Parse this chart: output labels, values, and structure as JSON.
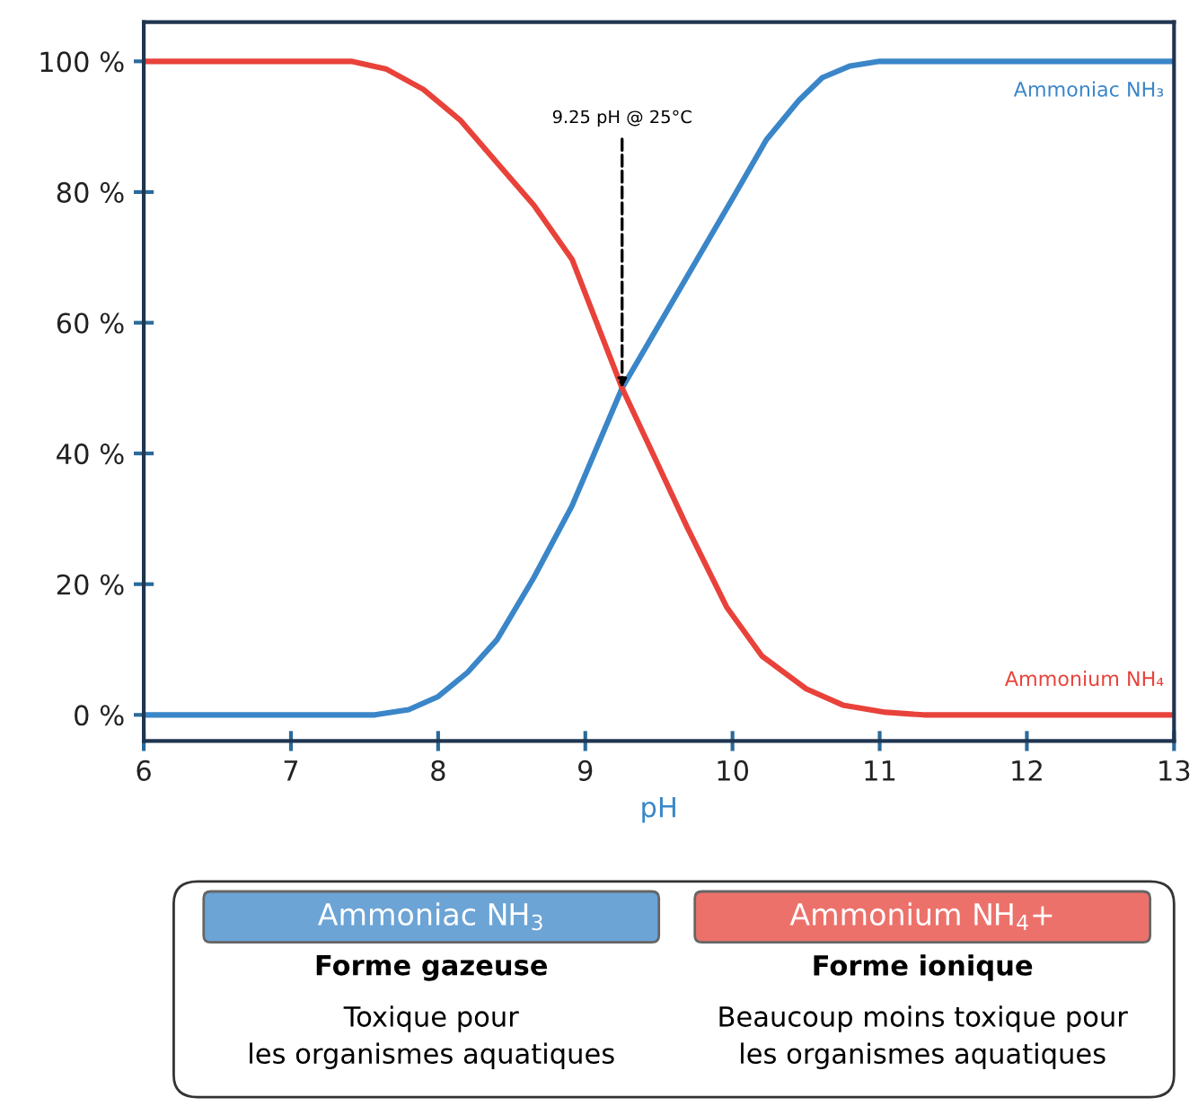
{
  "chart_data": {
    "type": "line",
    "xlabel": "pH",
    "series": [
      {
        "name": "Ammoniac NH₃",
        "color": "#3a86c8",
        "x": [
          6,
          7.57,
          7.8,
          8,
          8.2,
          8.4,
          8.65,
          8.91,
          9.25,
          9.69,
          10,
          10.23,
          10.45,
          10.61,
          10.8,
          11,
          13
        ],
        "values": [
          0,
          0,
          0.8,
          2.8,
          6.5,
          11.5,
          21,
          32,
          50,
          67,
          79,
          88,
          94,
          97.5,
          99.3,
          100,
          100
        ]
      },
      {
        "name": "Ammonium NH₄",
        "color": "#e8423a",
        "x": [
          6,
          7.41,
          7.65,
          7.9,
          8.15,
          8.4,
          8.65,
          8.91,
          9.25,
          9.5,
          9.69,
          9.96,
          10.2,
          10.5,
          10.75,
          11.04,
          11.3,
          13
        ],
        "values": [
          100,
          100,
          98.8,
          95.7,
          91,
          84.5,
          78,
          69.7,
          50,
          38,
          28.8,
          16.5,
          9,
          4,
          1.5,
          0.4,
          0,
          0
        ]
      }
    ],
    "xlim": [
      6,
      13
    ],
    "xticks": [
      6,
      7,
      8,
      9,
      10,
      11,
      12,
      13
    ],
    "ylim": [
      -4,
      106
    ],
    "yticks": [
      {
        "value": 0,
        "label": "0 %"
      },
      {
        "value": 20,
        "label": "20 %"
      },
      {
        "value": 40,
        "label": "40 %"
      },
      {
        "value": 60,
        "label": "60 %"
      },
      {
        "value": 80,
        "label": "80 %"
      },
      {
        "value": 100,
        "label": "100 %"
      }
    ],
    "grid": false,
    "legend": false,
    "marker": "none",
    "line_style": "solid",
    "annotations": [
      {
        "text": "9.25 pH @ 25°C",
        "x": 9.25,
        "y": 50
      },
      "Ammoniac NH$_{3}$",
      "Forme gazeuse",
      "Toxique pour\nles organismes aquatiques",
      "Ammonium NH$_{4}$+",
      "Forme ionique",
      "Beaucoup moins toxique pour\nles organismes aquatiques"
    ]
  }
}
